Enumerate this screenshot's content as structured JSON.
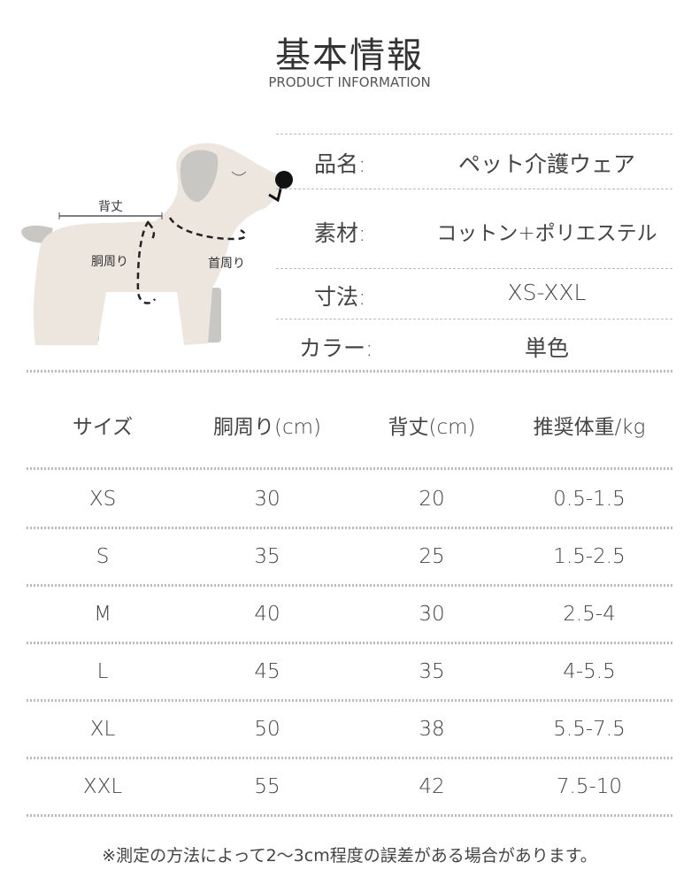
{
  "header": {
    "title": "基本情報",
    "subtitle": "PRODUCT INFORMATION"
  },
  "diagram": {
    "labels": {
      "back": "背丈",
      "chest": "胴周り",
      "neck": "首周り"
    }
  },
  "info": [
    {
      "label": "品名:",
      "value": "ペット介護ウェア"
    },
    {
      "label": "素材:",
      "value": "コットン+ポリエステル"
    },
    {
      "label": "寸法:",
      "value": "XS-XXL"
    },
    {
      "label": "カラー:",
      "value": "単色"
    }
  ],
  "size_table": {
    "headers": [
      "サイズ",
      "胴周り(cm)",
      "背丈(cm)",
      "推奨体重/kg"
    ],
    "rows": [
      [
        "XS",
        "30",
        "20",
        "0.5-1.5"
      ],
      [
        "S",
        "35",
        "25",
        "1.5-2.5"
      ],
      [
        "M",
        "40",
        "30",
        "2.5-4"
      ],
      [
        "L",
        "45",
        "35",
        "4-5.5"
      ],
      [
        "XL",
        "50",
        "38",
        "5.5-7.5"
      ],
      [
        "XXL",
        "55",
        "42",
        "7.5-10"
      ]
    ]
  },
  "note": "※測定の方法によって2〜3cm程度の誤差がある場合があります。",
  "colors": {
    "text": "#444444",
    "dog_body": "#ece6df",
    "dog_gray": "#c9c7c4"
  }
}
